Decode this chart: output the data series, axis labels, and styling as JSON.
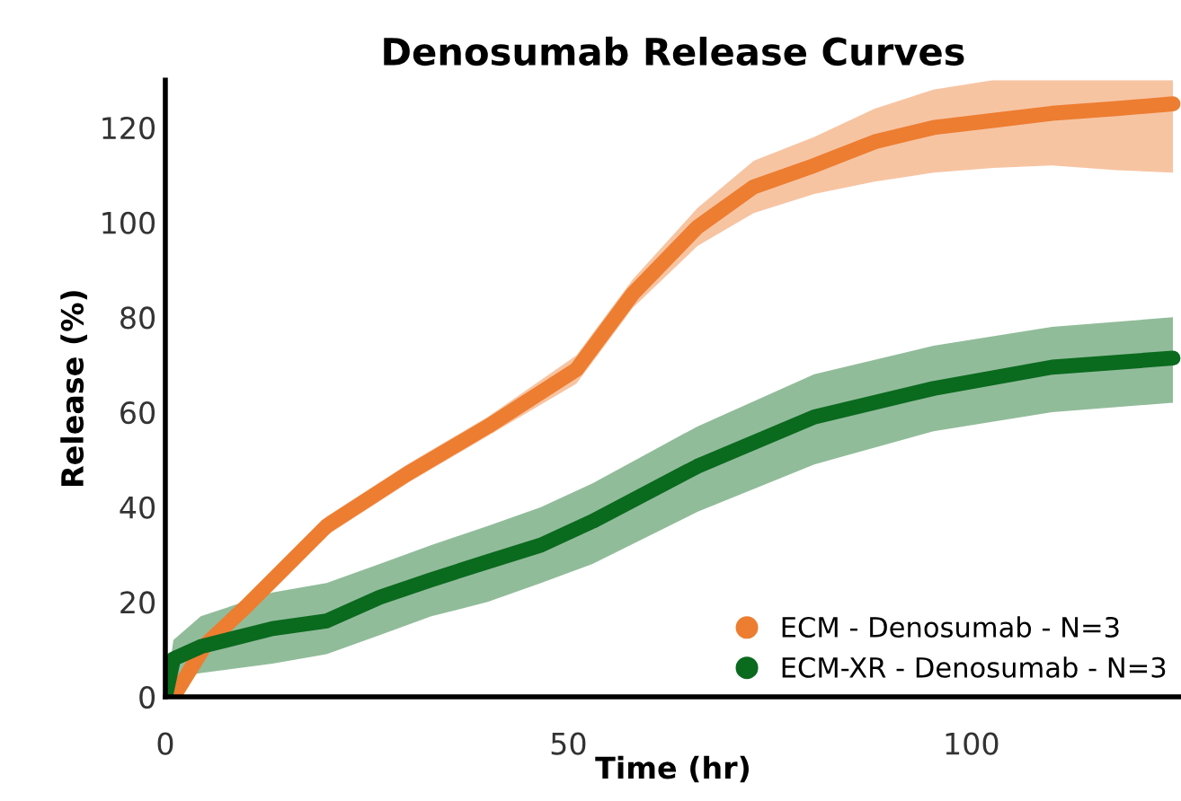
{
  "chart_data": {
    "type": "line",
    "title": "Denosumab Release Curves",
    "xlabel": "Time (hr)",
    "ylabel": "Release (%)",
    "xlim": [
      0,
      126
    ],
    "ylim": [
      0,
      130
    ],
    "xticks": [
      0,
      50,
      100
    ],
    "yticks": [
      0,
      20,
      40,
      60,
      80,
      100,
      120
    ],
    "grid": false,
    "legend": "bottom right",
    "marker": "none",
    "line_style": "solid",
    "series": [
      {
        "name": "ECM - Denosumab - N=3",
        "color": "#ed7d31",
        "x": [
          1,
          5,
          10,
          20,
          30,
          40,
          51,
          58,
          66,
          73,
          80.5,
          88,
          95.3,
          102.7,
          110,
          118,
          125
        ],
        "values": [
          0,
          11,
          19,
          36,
          47,
          57,
          69,
          85,
          99,
          107.5,
          112,
          117,
          120,
          121.5,
          123,
          124,
          125
        ],
        "lower": [
          0,
          9,
          17,
          34,
          45,
          55,
          66,
          82,
          95,
          102,
          106,
          108.6,
          110.5,
          111.5,
          112,
          111,
          110.5
        ],
        "upper": [
          2,
          13,
          21,
          38,
          49,
          59,
          72,
          88,
          103,
          113,
          118,
          124,
          128,
          130,
          130,
          130,
          130
        ]
      },
      {
        "name": "ECM-XR - Denosumab - N=3",
        "color": "#0a6a1e",
        "x": [
          0,
          1,
          4.4,
          13.3,
          20,
          26.6,
          33,
          40,
          46.6,
          53,
          66,
          80.5,
          95.3,
          110,
          125
        ],
        "values": [
          0,
          8,
          10.6,
          14.4,
          16,
          21,
          24.7,
          28.5,
          32,
          37,
          48.6,
          59,
          65,
          69.5,
          71.4
        ],
        "lower": [
          0,
          4,
          5,
          7,
          9,
          13,
          17,
          20,
          24,
          28,
          39,
          49,
          56,
          60,
          62
        ],
        "upper": [
          0,
          12,
          17,
          22,
          24,
          28,
          32,
          36,
          40,
          45,
          57,
          68,
          74,
          78,
          80
        ]
      }
    ]
  }
}
